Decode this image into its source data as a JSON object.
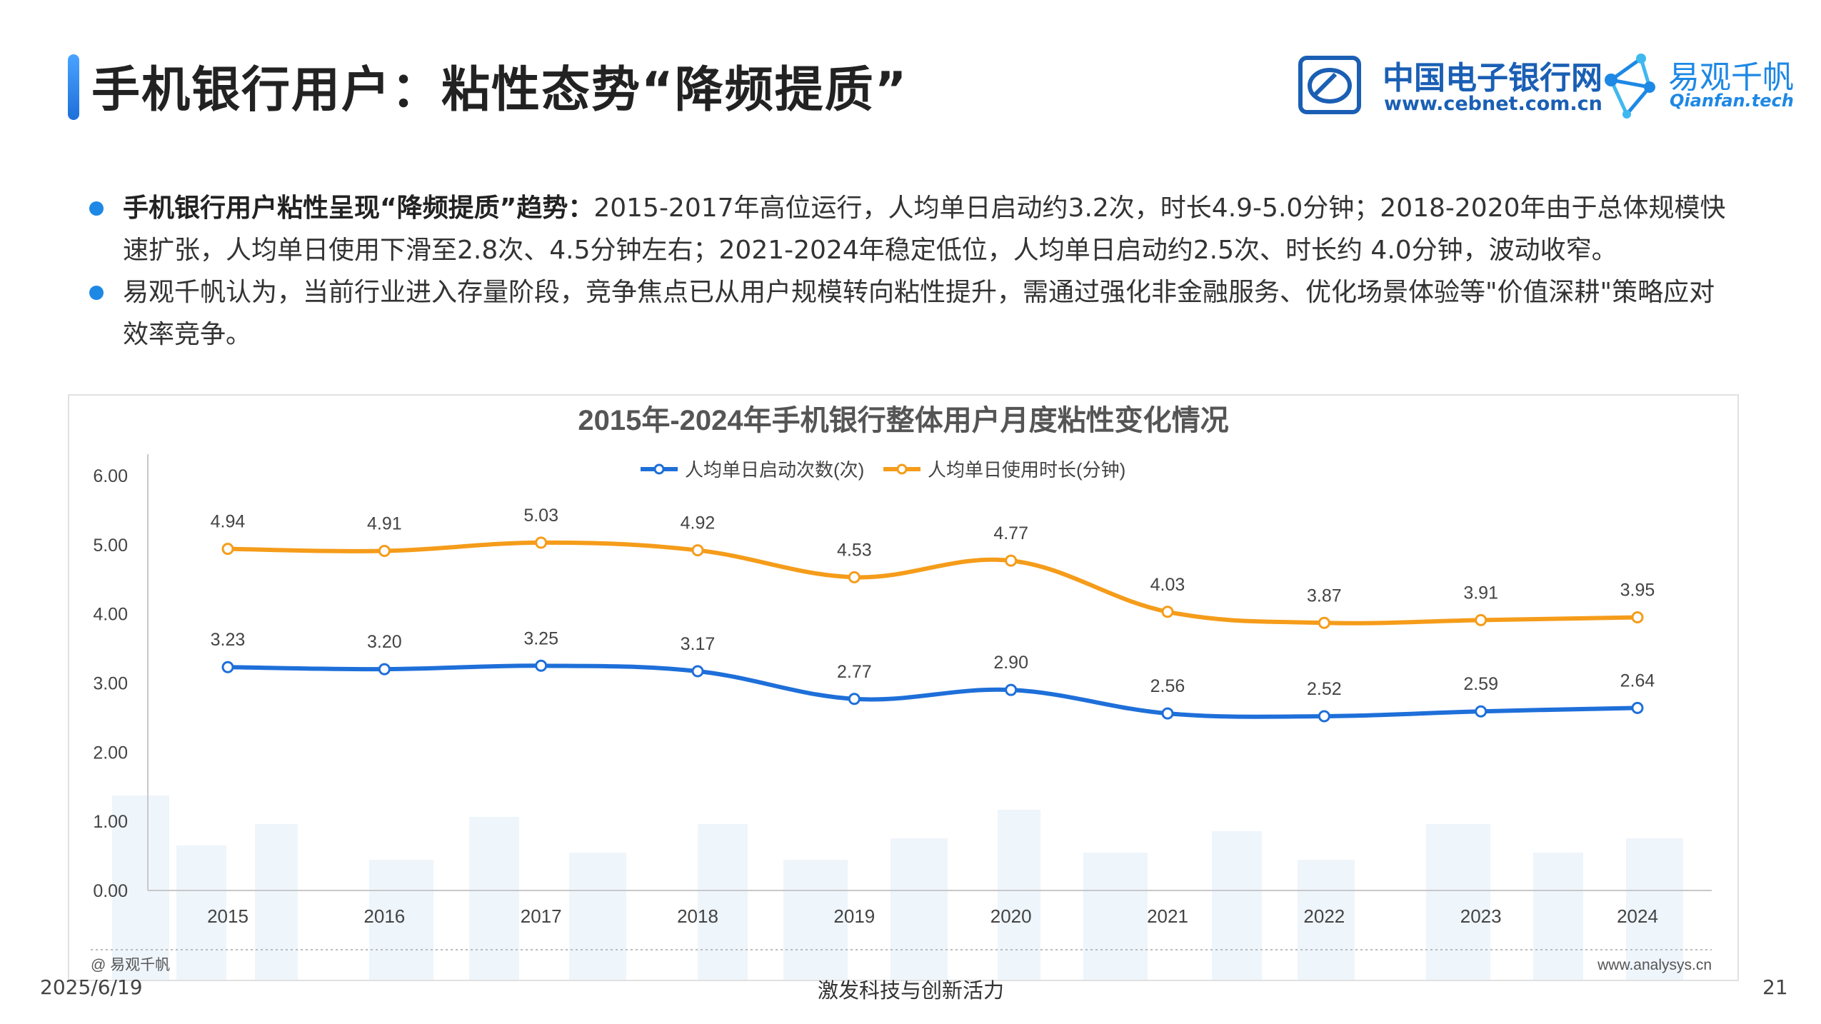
{
  "header": {
    "title": "手机银行用户：粘性态势“降频提质”",
    "logo_cebnet_cn": "中国电子银行网",
    "logo_cebnet_url": "www.cebnet.com.cn",
    "logo_qianfan_cn": "易观千帆",
    "logo_qianfan_en": "Qianfan.tech"
  },
  "bullets": [
    {
      "bold": "手机银行用户粘性呈现“降频提质”趋势：",
      "text": "2015-2017年高位运行，人均单日启动约3.2次，时长4.9-5.0分钟；2018-2020年由于总体规模快速扩张，人均单日使用下滑至2.8次、4.5分钟左右；2021-2024年稳定低位，人均单日启动约2.5次、时长约 4.0分钟，波动收窄。"
    },
    {
      "bold": "",
      "text": "易观千帆认为，当前行业进入存量阶段，竞争焦点已从用户规模转向粘性提升，需通过强化非金融服务、优化场景体验等\"价值深耕\"策略应对效率竞争。"
    }
  ],
  "chart_data": {
    "type": "line",
    "title": "2015年-2024年手机银行整体用户月度粘性变化情况",
    "categories": [
      "2015",
      "2016",
      "2017",
      "2018",
      "2019",
      "2020",
      "2021",
      "2022",
      "2023",
      "2024"
    ],
    "series": [
      {
        "name": "人均单日启动次数(次)",
        "color": "#1e6fd9",
        "values": [
          3.23,
          3.2,
          3.25,
          3.17,
          2.77,
          2.9,
          2.56,
          2.52,
          2.59,
          2.64
        ]
      },
      {
        "name": "人均单日使用时长(分钟)",
        "color": "#f59c1a",
        "values": [
          4.94,
          4.91,
          5.03,
          4.92,
          4.53,
          4.77,
          4.03,
          3.87,
          3.91,
          3.95
        ]
      }
    ],
    "ylim": [
      0,
      6
    ],
    "yticks": [
      "0.00",
      "1.00",
      "2.00",
      "3.00",
      "4.00",
      "5.00",
      "6.00"
    ],
    "legend_position": "top-center",
    "grid": false,
    "source_left": "@ 易观千帆",
    "source_right": "www.analysys.cn"
  },
  "footer": {
    "date": "2025/6/19",
    "slogan": "激发科技与创新活力",
    "page": "21"
  }
}
